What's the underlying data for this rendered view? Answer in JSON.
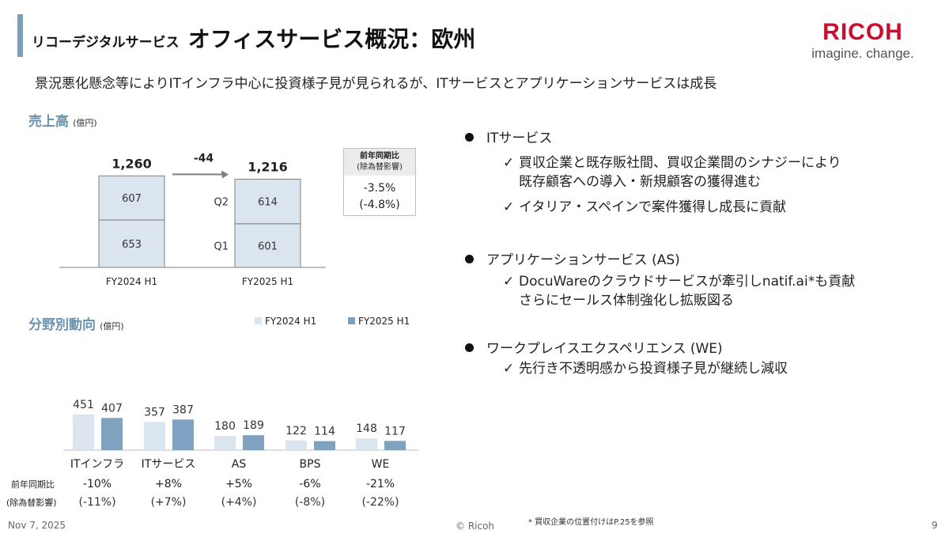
{
  "header": {
    "subtitle_prefix": "リコーデジタルサービス",
    "title": "オフィスサービス概況：欧州",
    "logo_text": "RICOH",
    "logo_tagline": "imagine. change."
  },
  "summary": "景況悪化懸念等によりITインフラ中心に投資様子見が見られるが、ITサービスとアプリケーションサービスは成長",
  "sales_section": {
    "title": "売上高",
    "unit": "(億円)",
    "yoy_box": {
      "header_line1": "前年同期比",
      "header_line2": "(除為替影響)",
      "value": "-3.5%",
      "value_fx": "(-4.8%)"
    }
  },
  "segment_section": {
    "title": "分野別動向",
    "unit": "(億円)",
    "row_label_yoy": "前年同期比",
    "row_label_fx": "(除為替影響)"
  },
  "chart_data": [
    {
      "type": "bar",
      "stacked": true,
      "categories": [
        "FY2024 H1",
        "FY2025 H1"
      ],
      "series": [
        {
          "name": "Q1",
          "values": [
            653,
            601
          ]
        },
        {
          "name": "Q2",
          "values": [
            607,
            614
          ]
        }
      ],
      "totals": [
        "1,260",
        "1,216"
      ],
      "diff_label": "-44",
      "segment_labels": [
        "Q1",
        "Q2"
      ],
      "colors": {
        "bar_fill": "#dae5ef",
        "bar_stroke": "#7f7f7f"
      }
    },
    {
      "type": "bar",
      "categories": [
        "ITインフラ",
        "ITサービス",
        "AS",
        "BPS",
        "WE"
      ],
      "series": [
        {
          "name": "FY2024 H1",
          "values": [
            451,
            357,
            180,
            122,
            148
          ],
          "color": "#dae5ef"
        },
        {
          "name": "FY2025 H1",
          "values": [
            407,
            387,
            189,
            114,
            117
          ],
          "color": "#7ea2bf"
        }
      ],
      "yoy": [
        "-10%",
        "+8%",
        "+5%",
        "-6%",
        "-21%"
      ],
      "yoy_fx": [
        "(-11%)",
        "(+7%)",
        "(+4%)",
        "(-8%)",
        "(-22%)"
      ],
      "legend_position": "top-right"
    }
  ],
  "bullets": [
    {
      "label": "ITサービス",
      "subs": [
        [
          "買収企業と既存販社間、買収企業間のシナジーにより",
          "既存顧客への導入・新規顧客の獲得進む"
        ],
        [
          "イタリア・スペインで案件獲得し成長に貢献"
        ]
      ]
    },
    {
      "label": "アプリケーションサービス (AS)",
      "subs": [
        [
          "DocuWareのクラウドサービスが牽引しnatif.ai*も貢献",
          "さらにセールス体制強化し拡販図る"
        ]
      ]
    },
    {
      "label": "ワークプレイスエクスペリエンス (WE)",
      "subs": [
        [
          "先行き不透明感から投資様子見が継続し減収"
        ]
      ]
    }
  ],
  "check_glyph": "✓",
  "footer": {
    "date": "Nov 7, 2025",
    "copyright": "© Ricoh",
    "note": "* 買収企業の位置付けはP.25を参照",
    "page": "9"
  }
}
